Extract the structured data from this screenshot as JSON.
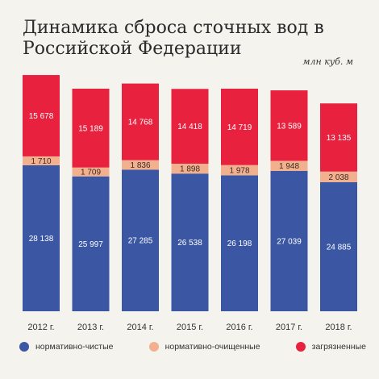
{
  "title": "Динамика сброса сточных вод в Российской Федерации",
  "unit": "млн куб. м",
  "chart_data": {
    "type": "bar",
    "stacked": true,
    "categories": [
      "2012 г.",
      "2013 г.",
      "2014 г.",
      "2015 г.",
      "2016 г.",
      "2017 г.",
      "2018 г."
    ],
    "series": [
      {
        "name": "нормативно-чистые",
        "color": "#3b57a4",
        "values": [
          28138,
          25997,
          27285,
          26538,
          26198,
          27039,
          24885
        ],
        "labels": [
          "28 138",
          "25 997",
          "27 285",
          "26 538",
          "26 198",
          "27 039",
          "24 885"
        ]
      },
      {
        "name": "нормативно-очищенные",
        "color": "#f2b08f",
        "values": [
          1710,
          1709,
          1836,
          1898,
          1978,
          1948,
          2038
        ],
        "labels": [
          "1 710",
          "1 709",
          "1 836",
          "1 898",
          "1 978",
          "1 948",
          "2 038"
        ]
      },
      {
        "name": "загрязненные",
        "color": "#e8213f",
        "values": [
          15678,
          15189,
          14768,
          14418,
          14719,
          13589,
          13135
        ],
        "labels": [
          "15 678",
          "15 189",
          "14 768",
          "14 418",
          "14 719",
          "13 589",
          "13 135"
        ]
      }
    ],
    "ylim": [
      0,
      46000
    ],
    "grid": false,
    "legend": "bottom"
  }
}
